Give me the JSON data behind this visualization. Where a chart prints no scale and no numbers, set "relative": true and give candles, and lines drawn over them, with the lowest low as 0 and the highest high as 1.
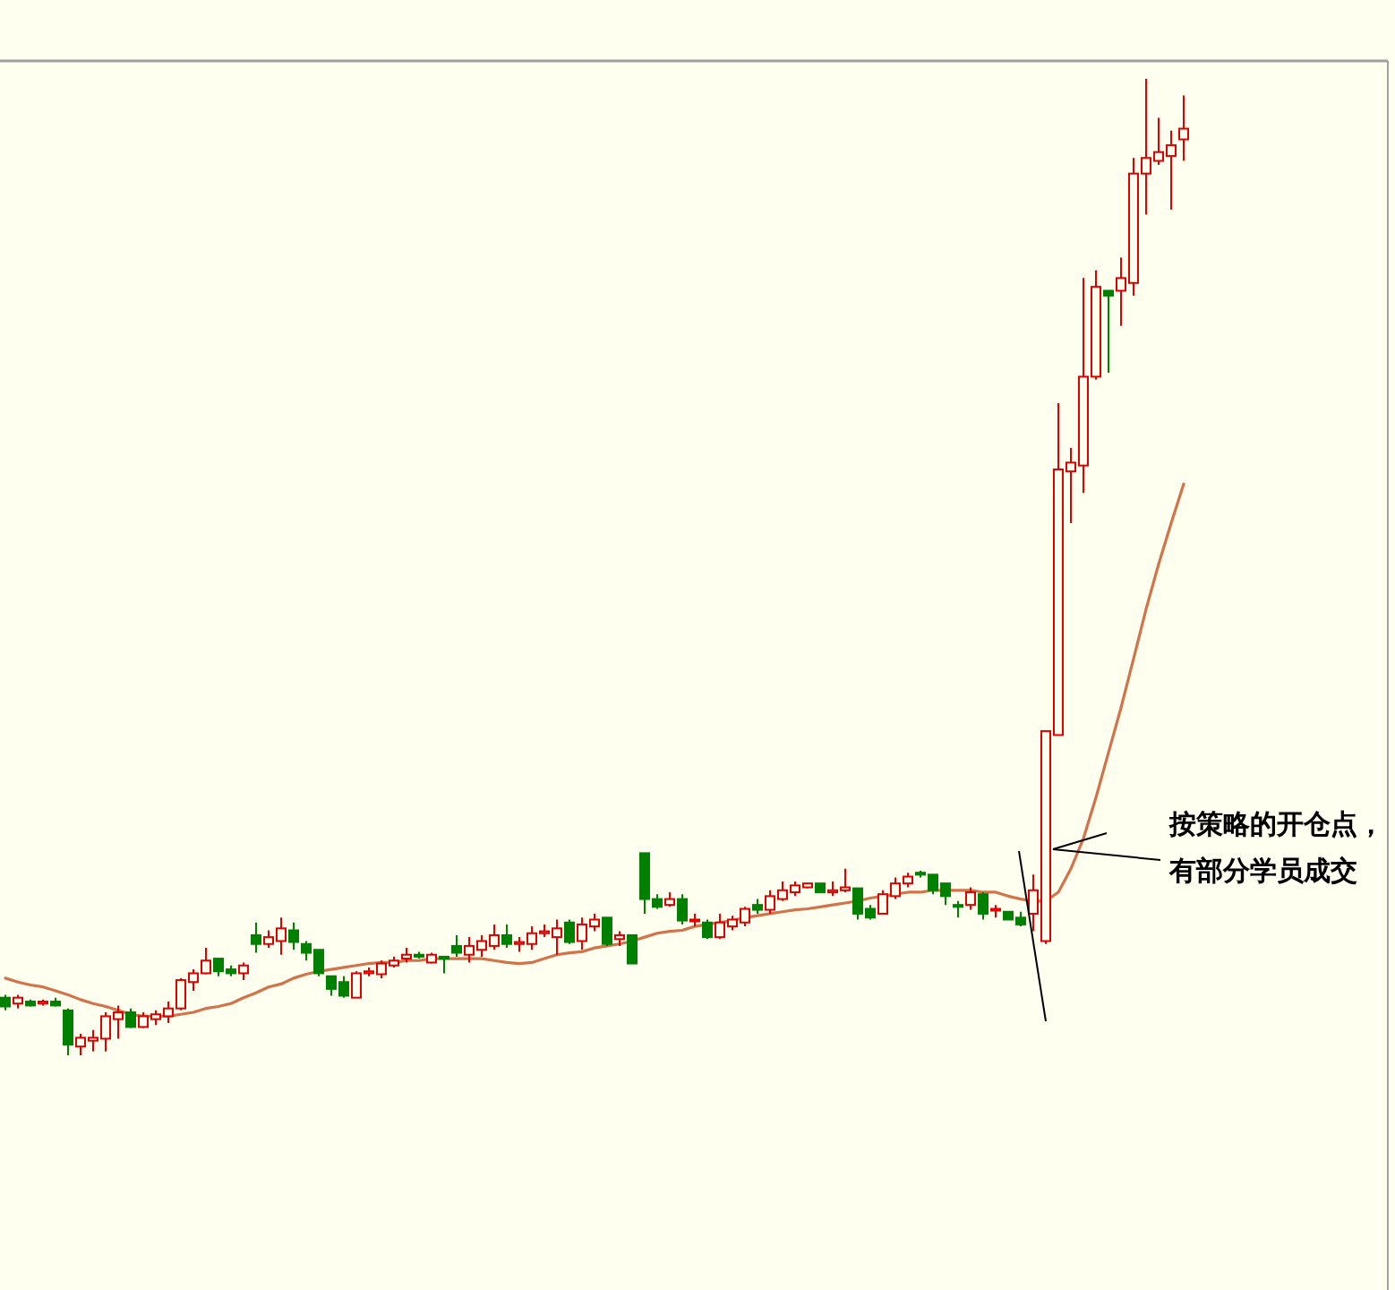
{
  "chart_data": {
    "type": "candlestick",
    "relative": true,
    "categories": [
      null,
      null,
      null,
      null,
      null,
      null,
      null,
      null,
      null,
      null,
      null,
      null,
      null,
      null,
      null,
      null,
      null,
      null,
      null,
      null,
      null,
      null,
      null,
      null,
      null,
      null,
      null,
      null,
      null,
      null,
      null,
      null,
      null,
      null,
      null,
      null,
      null,
      null,
      null,
      null,
      null,
      null,
      null,
      null,
      null,
      null,
      null,
      null,
      null,
      null,
      null,
      null,
      null,
      null,
      null,
      null,
      null,
      null,
      null,
      null,
      null,
      null,
      null,
      null,
      null,
      null,
      null,
      null,
      null,
      null,
      null,
      null,
      null,
      null,
      null,
      null,
      null,
      null,
      null,
      null,
      null,
      null,
      null,
      null,
      null,
      null,
      null,
      null,
      null,
      null,
      null,
      null,
      null,
      null,
      null
    ],
    "ohlc": [
      [
        0.059,
        0.062,
        0.046,
        0.05
      ],
      [
        0.053,
        0.062,
        0.048,
        0.059
      ],
      [
        0.055,
        0.057,
        0.05,
        0.051
      ],
      [
        0.053,
        0.057,
        0.051,
        0.055
      ],
      [
        0.055,
        0.059,
        0.05,
        0.051
      ],
      [
        0.046,
        0.048,
        0,
        0.011
      ],
      [
        0.009,
        0.022,
        0,
        0.018
      ],
      [
        0.015,
        0.026,
        0.004,
        0.018
      ],
      [
        0.017,
        0.044,
        0.004,
        0.04
      ],
      [
        0.037,
        0.051,
        0.017,
        0.044
      ],
      [
        0.044,
        0.048,
        0.028,
        0.029
      ],
      [
        0.029,
        0.044,
        0.028,
        0.04
      ],
      [
        0.037,
        0.046,
        0.031,
        0.042
      ],
      [
        0.04,
        0.055,
        0.033,
        0.048
      ],
      [
        0.048,
        0.079,
        0.046,
        0.077
      ],
      [
        0.075,
        0.088,
        0.066,
        0.084
      ],
      [
        0.084,
        0.11,
        0.083,
        0.097
      ],
      [
        0.099,
        0.099,
        0.081,
        0.086
      ],
      [
        0.088,
        0.092,
        0.081,
        0.084
      ],
      [
        0.084,
        0.095,
        0.077,
        0.092
      ],
      [
        0.123,
        0.136,
        0.105,
        0.114
      ],
      [
        0.114,
        0.128,
        0.11,
        0.121
      ],
      [
        0.117,
        0.141,
        0.103,
        0.13
      ],
      [
        0.128,
        0.136,
        0.108,
        0.116
      ],
      [
        0.114,
        0.117,
        0.097,
        0.105
      ],
      [
        0.108,
        0.108,
        0.081,
        0.084
      ],
      [
        0.081,
        0.081,
        0.061,
        0.068
      ],
      [
        0.075,
        0.081,
        0.059,
        0.061
      ],
      [
        0.059,
        0.086,
        0.059,
        0.084
      ],
      [
        0.084,
        0.09,
        0.081,
        0.086
      ],
      [
        0.083,
        0.097,
        0.079,
        0.094
      ],
      [
        0.092,
        0.101,
        0.09,
        0.097
      ],
      [
        0.099,
        0.11,
        0.095,
        0.103
      ],
      [
        0.103,
        0.106,
        0.099,
        0.101
      ],
      [
        0.095,
        0.105,
        0.094,
        0.103
      ],
      [
        0.101,
        0.101,
        0.084,
        0.099
      ],
      [
        0.112,
        0.123,
        0.101,
        0.105
      ],
      [
        0.103,
        0.121,
        0.095,
        0.112
      ],
      [
        0.108,
        0.123,
        0.101,
        0.117
      ],
      [
        0.112,
        0.134,
        0.108,
        0.123
      ],
      [
        0.123,
        0.134,
        0.11,
        0.114
      ],
      [
        0.114,
        0.121,
        0.106,
        0.116
      ],
      [
        0.114,
        0.132,
        0.108,
        0.125
      ],
      [
        0.125,
        0.134,
        0.121,
        0.127
      ],
      [
        0.121,
        0.139,
        0.103,
        0.13
      ],
      [
        0.136,
        0.139,
        0.114,
        0.116
      ],
      [
        0.117,
        0.141,
        0.108,
        0.134
      ],
      [
        0.132,
        0.145,
        0.127,
        0.139
      ],
      [
        0.141,
        0.141,
        0.112,
        0.114
      ],
      [
        0.119,
        0.127,
        0.112,
        0.123
      ],
      [
        0.123,
        0.123,
        0.094,
        0.094
      ],
      [
        0.207,
        0.207,
        0.145,
        0.16
      ],
      [
        0.16,
        0.165,
        0.15,
        0.152
      ],
      [
        0.154,
        0.167,
        0.152,
        0.16
      ],
      [
        0.16,
        0.165,
        0.134,
        0.138
      ],
      [
        0.138,
        0.145,
        0.132,
        0.139
      ],
      [
        0.136,
        0.139,
        0.119,
        0.121
      ],
      [
        0.121,
        0.145,
        0.119,
        0.136
      ],
      [
        0.132,
        0.143,
        0.128,
        0.139
      ],
      [
        0.136,
        0.152,
        0.132,
        0.15
      ],
      [
        0.154,
        0.16,
        0.145,
        0.149
      ],
      [
        0.149,
        0.169,
        0.145,
        0.163
      ],
      [
        0.16,
        0.178,
        0.158,
        0.169
      ],
      [
        0.167,
        0.178,
        0.163,
        0.174
      ],
      [
        0.172,
        0.176,
        0.171,
        0.176
      ],
      [
        0.176,
        0.176,
        0.167,
        0.167
      ],
      [
        0.167,
        0.178,
        0.163,
        0.169
      ],
      [
        0.169,
        0.191,
        0.167,
        0.172
      ],
      [
        0.171,
        0.171,
        0.139,
        0.145
      ],
      [
        0.15,
        0.154,
        0.139,
        0.141
      ],
      [
        0.145,
        0.169,
        0.145,
        0.165
      ],
      [
        0.163,
        0.182,
        0.16,
        0.176
      ],
      [
        0.176,
        0.187,
        0.172,
        0.183
      ],
      [
        0.187,
        0.189,
        0.182,
        0.185
      ],
      [
        0.185,
        0.185,
        0.165,
        0.169
      ],
      [
        0.176,
        0.176,
        0.154,
        0.163
      ],
      [
        0.154,
        0.158,
        0.141,
        0.152
      ],
      [
        0.154,
        0.172,
        0.149,
        0.167
      ],
      [
        0.165,
        0.167,
        0.139,
        0.145
      ],
      [
        0.149,
        0.154,
        0.141,
        0.15
      ],
      [
        0.147,
        0.147,
        0.139,
        0.139
      ],
      [
        0.141,
        0.147,
        0.132,
        0.134
      ],
      [
        0.145,
        0.185,
        0.127,
        0.169
      ],
      [
        0.117,
        0.332,
        0.114,
        0.332
      ],
      [
        0.328,
        0.668,
        0.328,
        0.6
      ],
      [
        0.598,
        0.622,
        0.545,
        0.607
      ],
      [
        0.604,
        0.796,
        0.576,
        0.695
      ],
      [
        0.695,
        0.804,
        0.692,
        0.787
      ],
      [
        0.783,
        0.783,
        0.699,
        0.778
      ],
      [
        0.783,
        0.817,
        0.747,
        0.796
      ],
      [
        0.791,
        0.919,
        0.778,
        0.903
      ],
      [
        0.903,
        1,
        0.861,
        0.919
      ],
      [
        0.916,
        0.96,
        0.912,
        0.925
      ],
      [
        0.921,
        0.947,
        0.866,
        0.932
      ],
      [
        0.938,
        0.983,
        0.916,
        0.949
      ]
    ],
    "series": [
      {
        "type": "line",
        "color": "#d2734a",
        "values": [
          0.079,
          0.075,
          0.072,
          0.07,
          0.066,
          0.062,
          0.057,
          0.053,
          0.05,
          0.046,
          0.042,
          0.04,
          0.04,
          0.04,
          0.042,
          0.044,
          0.048,
          0.05,
          0.053,
          0.059,
          0.064,
          0.07,
          0.073,
          0.079,
          0.083,
          0.086,
          0.088,
          0.09,
          0.092,
          0.094,
          0.095,
          0.095,
          0.097,
          0.097,
          0.099,
          0.099,
          0.099,
          0.099,
          0.099,
          0.097,
          0.095,
          0.094,
          0.095,
          0.099,
          0.103,
          0.105,
          0.106,
          0.11,
          0.112,
          0.114,
          0.117,
          0.121,
          0.125,
          0.127,
          0.128,
          0.132,
          0.134,
          0.136,
          0.138,
          0.141,
          0.143,
          0.145,
          0.147,
          0.149,
          0.15,
          0.152,
          0.154,
          0.156,
          0.158,
          0.161,
          0.163,
          0.165,
          0.167,
          0.167,
          0.169,
          0.169,
          0.169,
          0.169,
          0.167,
          0.167,
          0.163,
          0.16,
          0.158,
          0.158,
          0.167,
          0.191,
          0.222,
          0.264,
          0.31,
          0.356,
          0.406,
          0.457,
          0.503,
          0.545,
          0.585
        ]
      }
    ],
    "annotations": [
      "按策略的开仓点，",
      "有部分学员成交"
    ]
  }
}
